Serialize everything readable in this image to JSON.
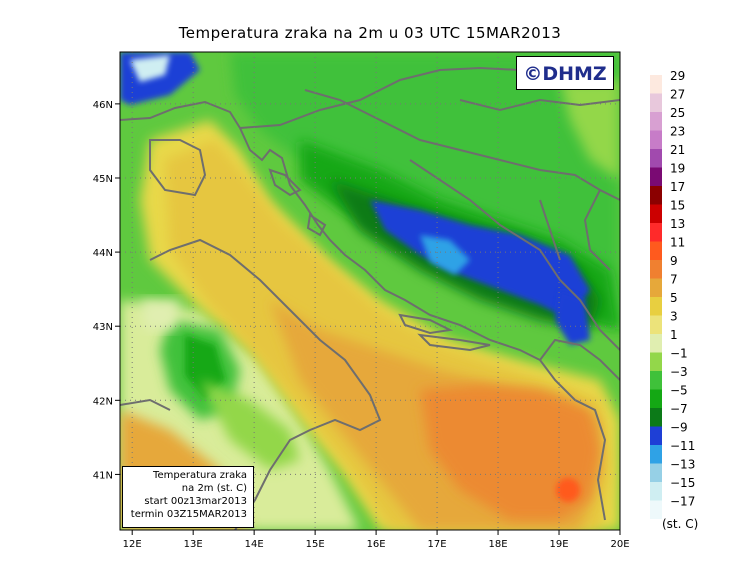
{
  "title": "Temperatura zraka na 2m u 03 UTC 15MAR2013",
  "logo": "©DHMZ",
  "info": {
    "line1": "Temperatura zraka",
    "line2": "na 2m (st. C)",
    "line3": "start 00z13mar2013",
    "line4": "termin 03Z15MAR2013"
  },
  "axes": {
    "lon_labels": [
      "12E",
      "13E",
      "14E",
      "15E",
      "16E",
      "17E",
      "18E",
      "19E",
      "20E"
    ],
    "lat_labels": [
      "41N",
      "42N",
      "43N",
      "44N",
      "45N",
      "46N"
    ]
  },
  "legend": {
    "unit": "(st. C)",
    "labels": [
      "29",
      "27",
      "25",
      "23",
      "21",
      "19",
      "17",
      "15",
      "13",
      "11",
      "9",
      "7",
      "5",
      "3",
      "1",
      "−1",
      "−3",
      "−5",
      "−7",
      "−9",
      "−11",
      "−13",
      "−15",
      "−17"
    ],
    "colors": [
      "#fde9df",
      "#e8c8dc",
      "#d8a0d2",
      "#c77cc8",
      "#a14aae",
      "#7a0a73",
      "#8b0000",
      "#cc0000",
      "#ff2a2a",
      "#ff5a1e",
      "#f08030",
      "#e6a83a",
      "#e8cf40",
      "#ece37a",
      "#e0eeb0",
      "#93d74a",
      "#3fc13a",
      "#14a814",
      "#0c7a18",
      "#1e3fd6",
      "#2fa2e6",
      "#96d0e6",
      "#cfeef2",
      "#eef9fb"
    ]
  }
}
